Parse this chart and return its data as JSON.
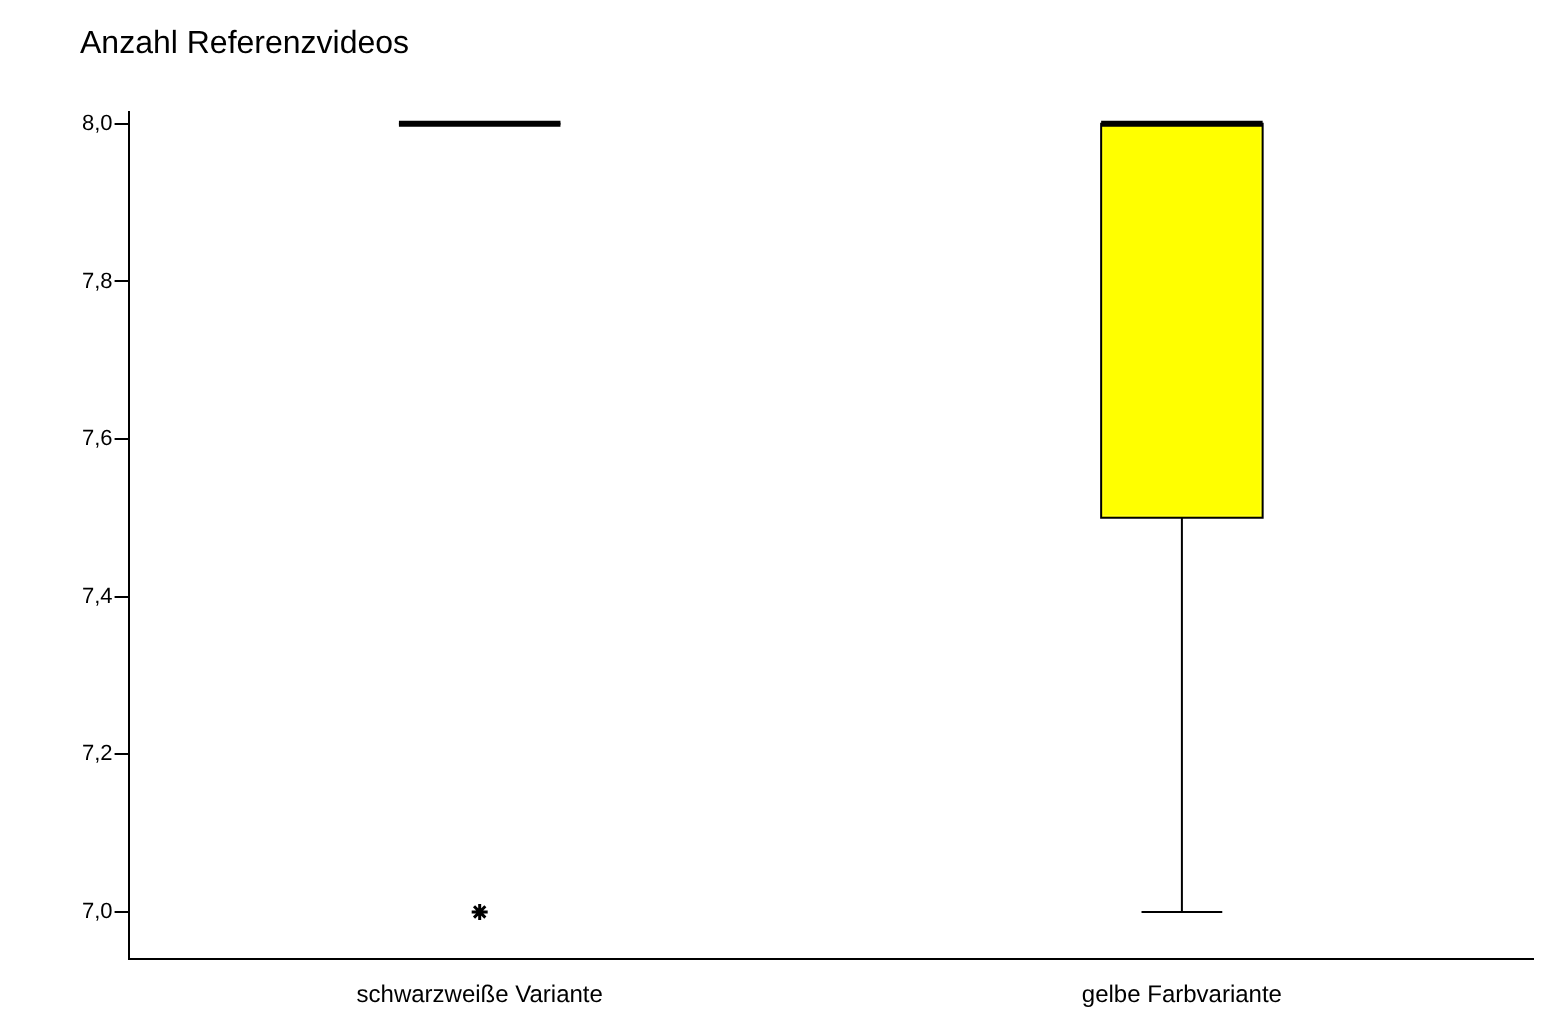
{
  "chart_data": {
    "type": "box",
    "ylabel": "Anzahl Referenzvideos",
    "categories": [
      "schwarzweiße Variante",
      "gelbe Farbvariante"
    ],
    "series": [
      {
        "colors": [
          "#000000",
          "#ffff00"
        ],
        "boxes": [
          {
            "low": 8,
            "q1": 8,
            "median": 8,
            "q3": 8,
            "high": 8,
            "outliers": [
              7
            ]
          },
          {
            "low": 7,
            "q1": 7.5,
            "median": 8,
            "q3": 8,
            "high": 8
          }
        ]
      }
    ],
    "marker": "star",
    "grid": false,
    "legend": false,
    "ylim": [
      6.94,
      8.015
    ],
    "yticks": [
      {
        "value": 7,
        "label": "7,0"
      },
      {
        "value": 7.2,
        "label": "7,2"
      },
      {
        "value": 7.4,
        "label": "7,4"
      },
      {
        "value": 7.6,
        "label": "7,6"
      },
      {
        "value": 7.8,
        "label": "7,8"
      },
      {
        "value": 8,
        "label": "8,0"
      }
    ]
  }
}
